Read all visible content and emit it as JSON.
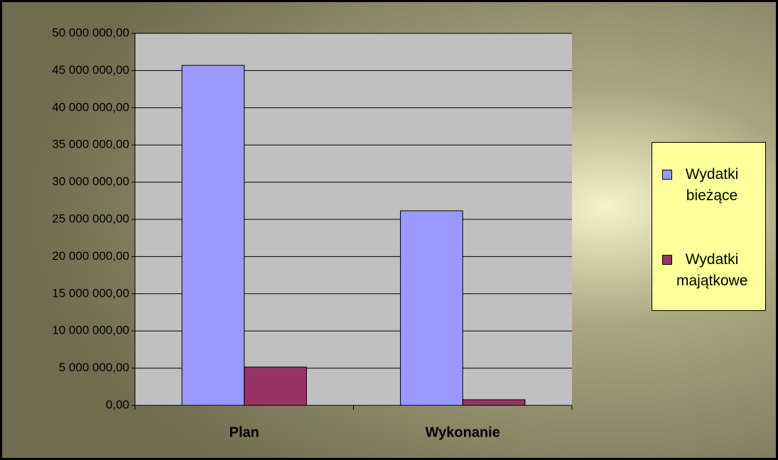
{
  "chart_data": {
    "type": "bar",
    "categories": [
      "Plan",
      "Wykonanie"
    ],
    "series": [
      {
        "name": "Wydatki bieżące",
        "color": "#9999ff",
        "values": [
          45700000,
          26150000
        ]
      },
      {
        "name": "Wydatki majątkowe",
        "color": "#993366",
        "values": [
          5150000,
          760000
        ]
      }
    ],
    "ylim": [
      0,
      50000000
    ],
    "yticks": [
      {
        "value": 0,
        "label": "0,00"
      },
      {
        "value": 5000000,
        "label": "5 000 000,00"
      },
      {
        "value": 10000000,
        "label": "10 000 000,00"
      },
      {
        "value": 15000000,
        "label": "15 000 000,00"
      },
      {
        "value": 20000000,
        "label": "20 000 000,00"
      },
      {
        "value": 25000000,
        "label": "25 000 000,00"
      },
      {
        "value": 30000000,
        "label": "30 000 000,00"
      },
      {
        "value": 35000000,
        "label": "35 000 000,00"
      },
      {
        "value": 40000000,
        "label": "40 000 000,00"
      },
      {
        "value": 45000000,
        "label": "45 000 000,00"
      },
      {
        "value": 50000000,
        "label": "50 000 000,00"
      }
    ],
    "grid": true,
    "legend": "right"
  }
}
